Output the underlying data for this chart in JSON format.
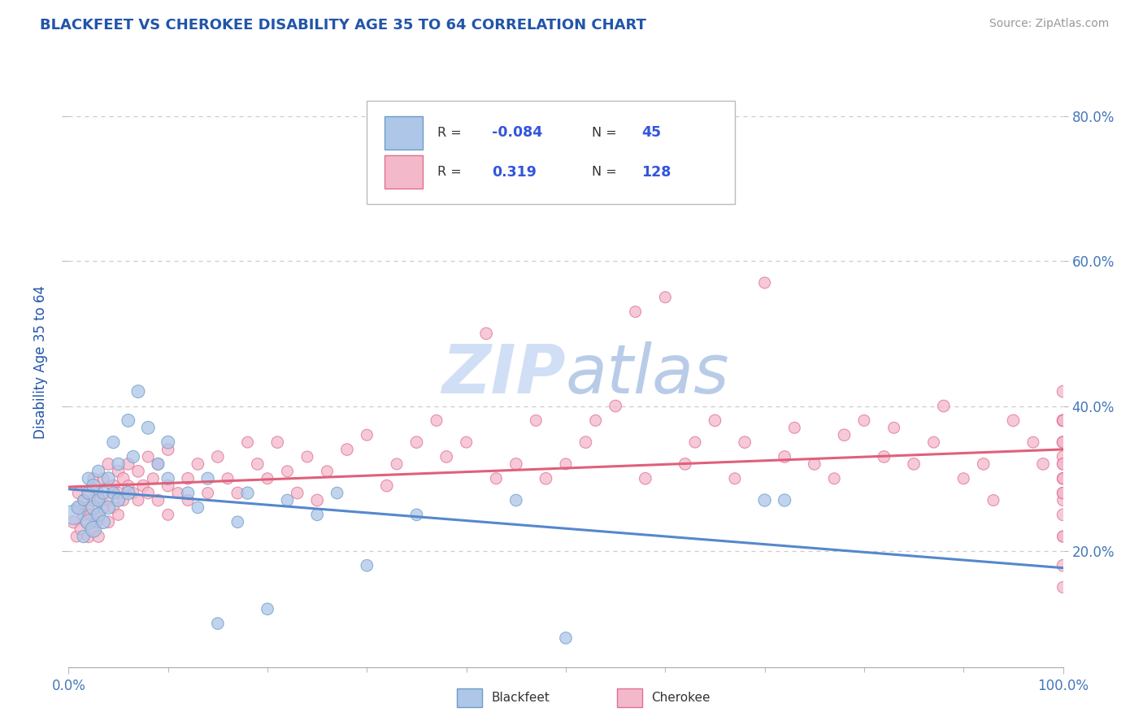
{
  "title": "BLACKFEET VS CHEROKEE DISABILITY AGE 35 TO 64 CORRELATION CHART",
  "source_text": "Source: ZipAtlas.com",
  "ylabel": "Disability Age 35 to 64",
  "xlim": [
    0.0,
    1.0
  ],
  "ylim": [
    0.04,
    0.88
  ],
  "y_tick_values": [
    0.2,
    0.4,
    0.6,
    0.8
  ],
  "y_tick_labels": [
    "20.0%",
    "40.0%",
    "60.0%",
    "80.0%"
  ],
  "legend_R_blackfeet": "-0.084",
  "legend_N_blackfeet": "45",
  "legend_R_cherokee": "0.319",
  "legend_N_cherokee": "128",
  "color_blackfeet_fill": "#aec6e8",
  "color_blackfeet_edge": "#6b9ec8",
  "color_cherokee_fill": "#f4b8cb",
  "color_cherokee_edge": "#e07090",
  "color_line_blackfeet": "#5588cc",
  "color_line_cherokee": "#e0607a",
  "color_title": "#2255aa",
  "color_axis_labels": "#4477bb",
  "color_r_value": "#3355dd",
  "color_grid": "#cccccc",
  "color_watermark": "#d0dff5",
  "watermark_text": "ZIPatlas",
  "blackfeet_x": [
    0.005,
    0.01,
    0.015,
    0.015,
    0.02,
    0.02,
    0.02,
    0.025,
    0.025,
    0.025,
    0.03,
    0.03,
    0.03,
    0.035,
    0.035,
    0.04,
    0.04,
    0.045,
    0.045,
    0.05,
    0.05,
    0.06,
    0.06,
    0.065,
    0.07,
    0.08,
    0.09,
    0.1,
    0.1,
    0.12,
    0.13,
    0.14,
    0.15,
    0.17,
    0.18,
    0.2,
    0.22,
    0.25,
    0.27,
    0.3,
    0.35,
    0.45,
    0.5,
    0.7,
    0.72
  ],
  "blackfeet_y": [
    0.25,
    0.26,
    0.22,
    0.27,
    0.24,
    0.28,
    0.3,
    0.23,
    0.26,
    0.29,
    0.25,
    0.27,
    0.31,
    0.24,
    0.28,
    0.3,
    0.26,
    0.28,
    0.35,
    0.27,
    0.32,
    0.38,
    0.28,
    0.33,
    0.42,
    0.37,
    0.32,
    0.3,
    0.35,
    0.28,
    0.26,
    0.3,
    0.1,
    0.24,
    0.28,
    0.12,
    0.27,
    0.25,
    0.28,
    0.18,
    0.25,
    0.27,
    0.08,
    0.27,
    0.27
  ],
  "blackfeet_sizes": [
    300,
    150,
    120,
    100,
    180,
    130,
    120,
    200,
    160,
    140,
    150,
    130,
    120,
    140,
    120,
    130,
    140,
    120,
    120,
    130,
    120,
    130,
    140,
    120,
    130,
    130,
    120,
    120,
    130,
    120,
    110,
    120,
    110,
    110,
    120,
    110,
    110,
    110,
    110,
    110,
    110,
    110,
    110,
    120,
    120
  ],
  "cherokee_x": [
    0.005,
    0.008,
    0.01,
    0.01,
    0.012,
    0.015,
    0.015,
    0.018,
    0.02,
    0.02,
    0.02,
    0.022,
    0.025,
    0.025,
    0.025,
    0.028,
    0.03,
    0.03,
    0.03,
    0.032,
    0.035,
    0.035,
    0.04,
    0.04,
    0.04,
    0.045,
    0.045,
    0.05,
    0.05,
    0.05,
    0.055,
    0.055,
    0.06,
    0.06,
    0.065,
    0.07,
    0.07,
    0.075,
    0.08,
    0.08,
    0.085,
    0.09,
    0.09,
    0.1,
    0.1,
    0.1,
    0.11,
    0.12,
    0.12,
    0.13,
    0.14,
    0.15,
    0.16,
    0.17,
    0.18,
    0.19,
    0.2,
    0.21,
    0.22,
    0.23,
    0.24,
    0.25,
    0.26,
    0.28,
    0.3,
    0.32,
    0.33,
    0.35,
    0.37,
    0.38,
    0.4,
    0.42,
    0.43,
    0.45,
    0.47,
    0.48,
    0.5,
    0.52,
    0.53,
    0.55,
    0.57,
    0.58,
    0.6,
    0.62,
    0.63,
    0.65,
    0.67,
    0.68,
    0.7,
    0.72,
    0.73,
    0.75,
    0.77,
    0.78,
    0.8,
    0.82,
    0.83,
    0.85,
    0.87,
    0.88,
    0.9,
    0.92,
    0.93,
    0.95,
    0.97,
    0.98,
    1.0,
    1.0,
    1.0,
    1.0,
    1.0,
    1.0,
    1.0,
    1.0,
    1.0,
    1.0,
    1.0,
    1.0,
    1.0,
    1.0,
    1.0,
    1.0,
    1.0,
    1.0,
    1.0,
    1.0,
    1.0,
    1.0
  ],
  "cherokee_y": [
    0.24,
    0.22,
    0.26,
    0.28,
    0.23,
    0.25,
    0.27,
    0.24,
    0.22,
    0.26,
    0.28,
    0.25,
    0.23,
    0.27,
    0.3,
    0.24,
    0.25,
    0.28,
    0.22,
    0.27,
    0.26,
    0.3,
    0.24,
    0.27,
    0.32,
    0.26,
    0.29,
    0.28,
    0.25,
    0.31,
    0.27,
    0.3,
    0.29,
    0.32,
    0.28,
    0.31,
    0.27,
    0.29,
    0.33,
    0.28,
    0.3,
    0.27,
    0.32,
    0.29,
    0.25,
    0.34,
    0.28,
    0.3,
    0.27,
    0.32,
    0.28,
    0.33,
    0.3,
    0.28,
    0.35,
    0.32,
    0.3,
    0.35,
    0.31,
    0.28,
    0.33,
    0.27,
    0.31,
    0.34,
    0.36,
    0.29,
    0.32,
    0.35,
    0.38,
    0.33,
    0.35,
    0.5,
    0.3,
    0.32,
    0.38,
    0.3,
    0.32,
    0.35,
    0.38,
    0.4,
    0.53,
    0.3,
    0.55,
    0.32,
    0.35,
    0.38,
    0.3,
    0.35,
    0.57,
    0.33,
    0.37,
    0.32,
    0.3,
    0.36,
    0.38,
    0.33,
    0.37,
    0.32,
    0.35,
    0.4,
    0.3,
    0.32,
    0.27,
    0.38,
    0.35,
    0.32,
    0.3,
    0.33,
    0.27,
    0.35,
    0.22,
    0.3,
    0.28,
    0.38,
    0.32,
    0.18,
    0.35,
    0.25,
    0.3,
    0.38,
    0.22,
    0.35,
    0.28,
    0.42,
    0.15,
    0.32,
    0.38,
    0.28
  ],
  "cherokee_sizes": [
    120,
    100,
    100,
    110,
    100,
    110,
    100,
    110,
    120,
    100,
    110,
    100,
    120,
    110,
    100,
    110,
    110,
    100,
    110,
    100,
    110,
    100,
    110,
    100,
    110,
    100,
    110,
    110,
    100,
    110,
    100,
    110,
    100,
    110,
    100,
    110,
    100,
    110,
    100,
    110,
    100,
    110,
    100,
    110,
    100,
    110,
    100,
    110,
    100,
    110,
    100,
    110,
    100,
    110,
    100,
    110,
    100,
    110,
    100,
    110,
    100,
    110,
    100,
    110,
    100,
    110,
    100,
    110,
    100,
    110,
    100,
    110,
    100,
    110,
    100,
    110,
    100,
    110,
    100,
    110,
    100,
    110,
    100,
    110,
    100,
    110,
    100,
    110,
    100,
    110,
    100,
    110,
    100,
    110,
    100,
    110,
    100,
    110,
    100,
    110,
    100,
    110,
    100,
    110,
    100,
    110,
    100,
    110,
    100,
    110,
    100,
    110,
    100,
    110,
    100,
    110,
    100,
    110,
    100,
    110,
    100,
    110,
    100,
    110,
    100,
    110,
    100,
    110
  ]
}
